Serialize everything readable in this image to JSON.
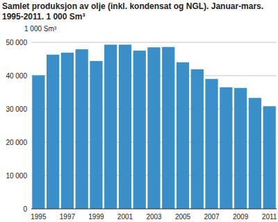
{
  "chart_data": {
    "type": "bar",
    "title": "Samlet produksjon av olje (inkl. kondensat og NGL). Januar-mars.",
    "subtitle": "1995-2011. 1 000 Sm³",
    "y_label": "1 000 Sm³",
    "categories": [
      "1995",
      null,
      "1997",
      null,
      "1999",
      null,
      "2001",
      null,
      "2003",
      null,
      "2005",
      null,
      "2007",
      null,
      "2009",
      null,
      "2011"
    ],
    "values": [
      40100,
      46300,
      46900,
      47900,
      44400,
      49300,
      49300,
      47500,
      48500,
      48600,
      44000,
      41900,
      39000,
      36500,
      36300,
      33300,
      30800
    ],
    "color": "#3a8fc9",
    "ylim": [
      0,
      50000
    ],
    "yticks": [
      0,
      {
        "value": 10000,
        "label": "10 000"
      },
      {
        "value": 20000,
        "label": "20 000"
      },
      {
        "value": 30000,
        "label": "30 000"
      },
      {
        "value": 40000,
        "label": "40 000"
      },
      {
        "value": 50000,
        "label": "50 000"
      }
    ],
    "grid": true
  }
}
